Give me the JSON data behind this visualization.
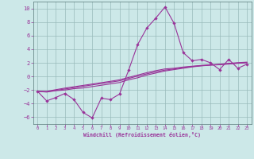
{
  "xlabel": "Windchill (Refroidissement éolien,°C)",
  "background_color": "#cce8e8",
  "grid_color": "#99bbbb",
  "line_color": "#993399",
  "x_data": [
    0,
    1,
    2,
    3,
    4,
    5,
    6,
    7,
    8,
    9,
    10,
    11,
    12,
    13,
    14,
    15,
    16,
    17,
    18,
    19,
    20,
    21,
    22,
    23
  ],
  "main_y": [
    -2.2,
    -3.6,
    -3.1,
    -2.5,
    -3.4,
    -5.3,
    -6.1,
    -3.2,
    -3.4,
    -2.6,
    0.9,
    4.7,
    7.1,
    8.6,
    10.2,
    7.8,
    3.5,
    2.3,
    2.5,
    2.0,
    1.0,
    2.5,
    1.2,
    1.8
  ],
  "line2_y": [
    -2.2,
    -2.3,
    -2.1,
    -2.0,
    -1.8,
    -1.7,
    -1.5,
    -1.3,
    -1.1,
    -0.9,
    -0.5,
    -0.2,
    0.2,
    0.5,
    0.8,
    1.0,
    1.2,
    1.4,
    1.55,
    1.65,
    1.72,
    1.82,
    1.92,
    2.0
  ],
  "line3_y": [
    -2.2,
    -2.25,
    -2.05,
    -1.85,
    -1.65,
    -1.45,
    -1.25,
    -1.05,
    -0.85,
    -0.65,
    -0.3,
    0.05,
    0.38,
    0.68,
    0.93,
    1.1,
    1.3,
    1.45,
    1.58,
    1.68,
    1.75,
    1.87,
    1.97,
    2.05
  ],
  "line4_y": [
    -2.2,
    -2.2,
    -1.95,
    -1.72,
    -1.52,
    -1.32,
    -1.12,
    -0.92,
    -0.72,
    -0.5,
    -0.15,
    0.2,
    0.55,
    0.85,
    1.1,
    1.2,
    1.38,
    1.5,
    1.62,
    1.7,
    1.78,
    1.92,
    2.02,
    2.1
  ],
  "ylim": [
    -7,
    11
  ],
  "xlim": [
    -0.5,
    23.5
  ],
  "yticks": [
    -6,
    -4,
    -2,
    0,
    2,
    4,
    6,
    8,
    10
  ],
  "xticks": [
    0,
    1,
    2,
    3,
    4,
    5,
    6,
    7,
    8,
    9,
    10,
    11,
    12,
    13,
    14,
    15,
    16,
    17,
    18,
    19,
    20,
    21,
    22,
    23
  ]
}
